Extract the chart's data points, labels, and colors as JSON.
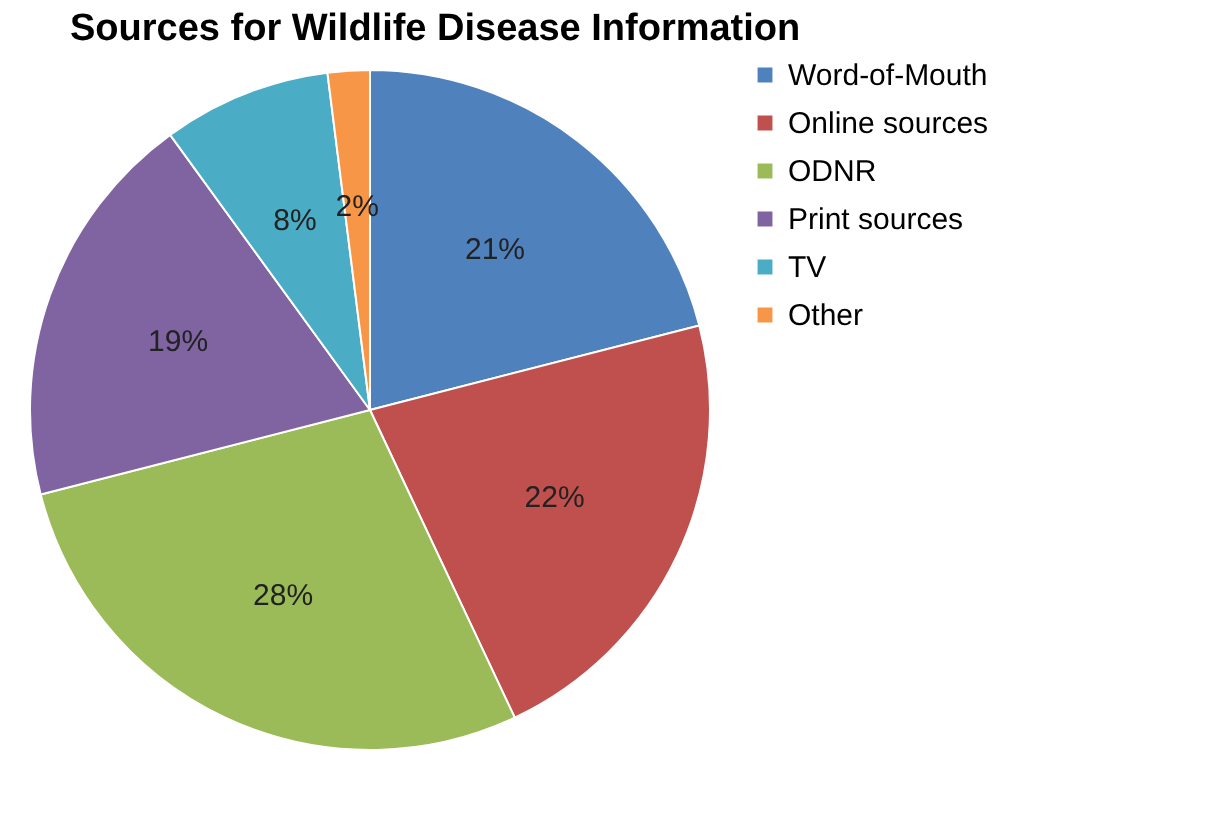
{
  "chart_data": {
    "type": "pie",
    "title": "Sources for Wildlife Disease Information",
    "categories": [
      "Word-of-Mouth",
      "Online sources",
      "ODNR",
      "Print sources",
      "TV",
      "Other"
    ],
    "values": [
      21,
      22,
      28,
      19,
      8,
      2
    ],
    "colors": [
      "#4f81bd",
      "#c0504d",
      "#9bbb59",
      "#8064a2",
      "#4bacc6",
      "#f79646"
    ],
    "value_labels": [
      "21%",
      "22%",
      "28%",
      "19%",
      "8%",
      "2%"
    ],
    "legend": "right"
  }
}
